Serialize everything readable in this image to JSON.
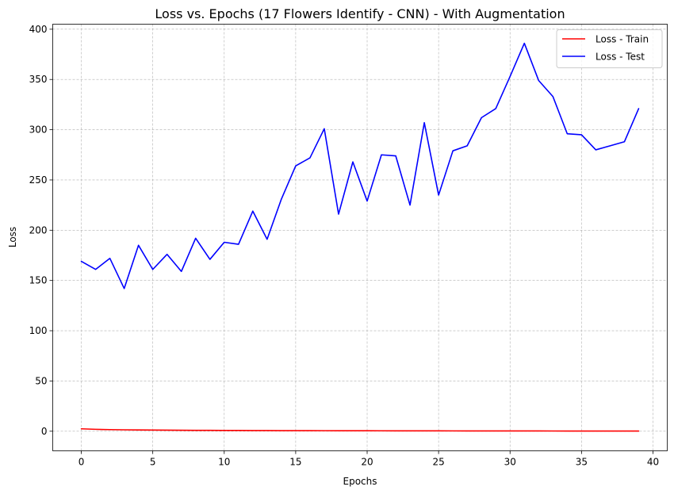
{
  "chart_data": {
    "type": "line",
    "title": "Loss vs. Epochs (17 Flowers Identify - CNN) - With Augmentation",
    "xlabel": "Epochs",
    "ylabel": "Loss",
    "xlim": [
      -2,
      41
    ],
    "ylim": [
      -19.5,
      405
    ],
    "x_ticks": [
      0,
      5,
      10,
      15,
      20,
      25,
      30,
      35,
      40
    ],
    "y_ticks": [
      0,
      50,
      100,
      150,
      200,
      250,
      300,
      350,
      400
    ],
    "grid": true,
    "legend_position": "top-right",
    "x": [
      0,
      1,
      2,
      3,
      4,
      5,
      6,
      7,
      8,
      9,
      10,
      11,
      12,
      13,
      14,
      15,
      16,
      17,
      18,
      19,
      20,
      21,
      22,
      23,
      24,
      25,
      26,
      27,
      28,
      29,
      30,
      31,
      32,
      33,
      34,
      35,
      36,
      37,
      38,
      39
    ],
    "series": [
      {
        "name": "Loss - Train",
        "color": "#ff0000",
        "values": [
          2.4,
          1.9,
          1.6,
          1.4,
          1.3,
          1.2,
          1.1,
          1.0,
          0.9,
          0.85,
          0.8,
          0.75,
          0.7,
          0.65,
          0.6,
          0.58,
          0.55,
          0.52,
          0.5,
          0.48,
          0.45,
          0.43,
          0.4,
          0.38,
          0.36,
          0.34,
          0.32,
          0.3,
          0.28,
          0.27,
          0.26,
          0.25,
          0.24,
          0.22,
          0.21,
          0.2,
          0.19,
          0.18,
          0.17,
          0.15
        ]
      },
      {
        "name": "Loss - Test",
        "color": "#0000ff",
        "values": [
          169,
          161,
          172,
          142,
          185,
          161,
          176,
          159,
          192,
          171,
          188,
          186,
          219,
          191,
          231,
          264,
          272,
          301,
          216,
          268,
          229,
          275,
          274,
          225,
          307,
          235,
          279,
          284,
          312,
          321,
          353,
          386,
          349,
          333,
          296,
          295,
          280,
          284,
          288,
          321
        ]
      }
    ]
  }
}
